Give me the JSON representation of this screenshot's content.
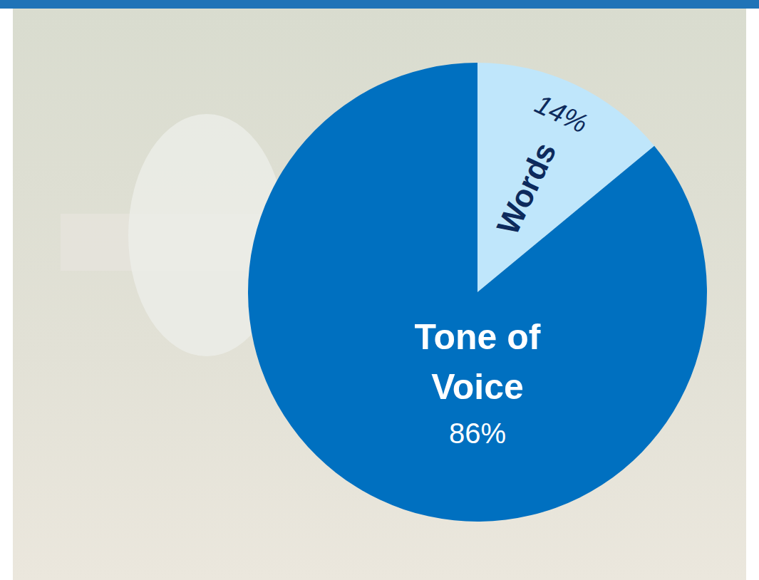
{
  "chart_data": {
    "type": "pie",
    "categories": [
      "Words",
      "Tone of Voice"
    ],
    "values": [
      14,
      86
    ],
    "value_labels": [
      "14%",
      "86%"
    ],
    "colors": [
      "#bfe6fb",
      "#0070c0"
    ],
    "data_labels": true
  }
}
